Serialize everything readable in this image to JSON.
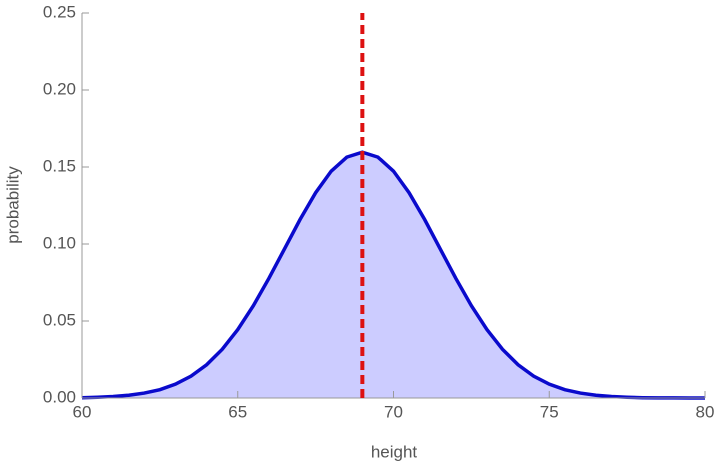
{
  "chart_data": {
    "type": "area",
    "x_label": "height",
    "y_label": "probability",
    "x": [
      60,
      60.5,
      61,
      61.5,
      62,
      62.5,
      63,
      63.5,
      64,
      64.5,
      65,
      65.5,
      66,
      66.5,
      67,
      67.5,
      68,
      68.5,
      69,
      69.5,
      70,
      70.5,
      71,
      71.5,
      72,
      72.5,
      73,
      73.5,
      74,
      74.5,
      75,
      75.5,
      76,
      76.5,
      77,
      77.5,
      78,
      78.5,
      79,
      79.5,
      80
    ],
    "values": [
      0.0002,
      0.0005,
      0.001,
      0.0018,
      0.0032,
      0.0054,
      0.009,
      0.0142,
      0.0216,
      0.0316,
      0.0444,
      0.0599,
      0.0777,
      0.0968,
      0.1159,
      0.1333,
      0.1473,
      0.1564,
      0.1596,
      0.1564,
      0.1473,
      0.1333,
      0.1159,
      0.0968,
      0.0777,
      0.0599,
      0.0444,
      0.0316,
      0.0216,
      0.0142,
      0.009,
      0.0054,
      0.0032,
      0.0018,
      0.001,
      0.0005,
      0.0002,
      0.0001,
      0.0001,
      0,
      0
    ],
    "color": "#0a0acc",
    "fill_color": "#ccccff",
    "vline": {
      "x": 69,
      "color": "#dd1111"
    },
    "xlim": [
      60,
      80
    ],
    "xticks": [
      60,
      65,
      70,
      75,
      80
    ],
    "ylim": [
      0,
      0.25
    ],
    "yticks": [
      {
        "value": 0,
        "label": "0.00"
      },
      0.05,
      {
        "value": 0.1,
        "label": "0.10"
      },
      0.15,
      {
        "value": 0.2,
        "label": "0.20"
      },
      0.25
    ]
  }
}
